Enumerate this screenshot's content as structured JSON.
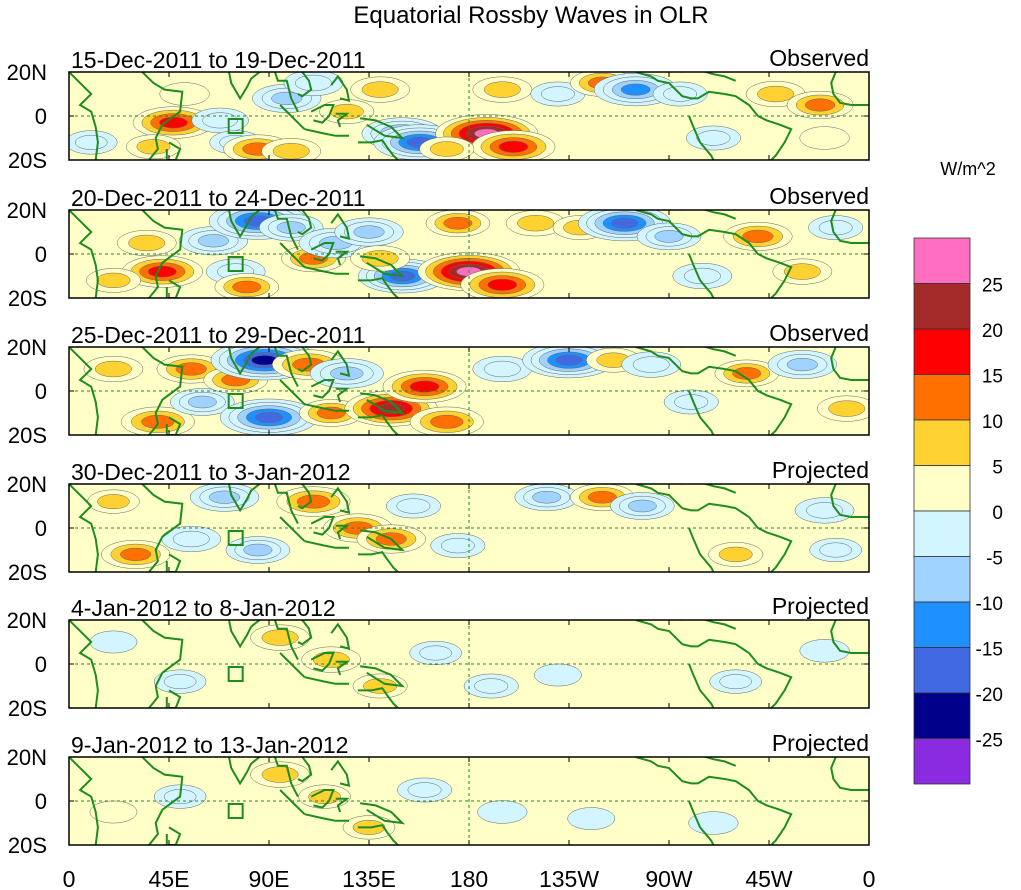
{
  "chart_data": {
    "type": "heatmap",
    "title": "Equatorial Rossby Waves in OLR",
    "units": "W/m^2",
    "lat_ticks": [
      "20N",
      "0",
      "20S"
    ],
    "lon_ticks": [
      "0",
      "45E",
      "90E",
      "135E",
      "180",
      "135W",
      "90W",
      "45W",
      "0"
    ],
    "lon_range": [
      0,
      360
    ],
    "lat_range": [
      -20,
      20
    ],
    "colorbar": {
      "levels": [
        "25",
        "20",
        "15",
        "10",
        "5",
        "0",
        "-5",
        "-10",
        "-15",
        "-20",
        "-25"
      ],
      "colors": [
        "#ff6ec0",
        "#a52a2a",
        "#ff0000",
        "#ff7000",
        "#ffd232",
        "#ffffc8",
        "#d2f5ff",
        "#a0d2ff",
        "#1e90ff",
        "#4169e1",
        "#00008b",
        "#8a2be2"
      ]
    },
    "panels": [
      {
        "period": "15-Dec-2011 to 19-Dec-2011",
        "kind": "Observed",
        "blobs": [
          {
            "lon": 47,
            "lat": -3,
            "val": 17
          },
          {
            "lon": 38,
            "lat": -14,
            "val": 6
          },
          {
            "lon": 52,
            "lat": 10,
            "val": 4
          },
          {
            "lon": 68,
            "lat": -2,
            "val": -7
          },
          {
            "lon": 75,
            "lat": -12,
            "val": -5
          },
          {
            "lon": 85,
            "lat": -15,
            "val": 12
          },
          {
            "lon": 100,
            "lat": -16,
            "val": 8
          },
          {
            "lon": 98,
            "lat": 8,
            "val": -12
          },
          {
            "lon": 110,
            "lat": 15,
            "val": -8
          },
          {
            "lon": 125,
            "lat": 2,
            "val": 6
          },
          {
            "lon": 140,
            "lat": 12,
            "val": 8
          },
          {
            "lon": 150,
            "lat": -8,
            "val": -17
          },
          {
            "lon": 158,
            "lat": -12,
            "val": -22
          },
          {
            "lon": 188,
            "lat": -8,
            "val": 26
          },
          {
            "lon": 200,
            "lat": -14,
            "val": 18
          },
          {
            "lon": 170,
            "lat": -15,
            "val": 6
          },
          {
            "lon": 195,
            "lat": 12,
            "val": 8
          },
          {
            "lon": 220,
            "lat": 10,
            "val": -6
          },
          {
            "lon": 240,
            "lat": 15,
            "val": 10
          },
          {
            "lon": 255,
            "lat": 12,
            "val": -18
          },
          {
            "lon": 275,
            "lat": 10,
            "val": -6
          },
          {
            "lon": 290,
            "lat": -10,
            "val": -6
          },
          {
            "lon": 318,
            "lat": 10,
            "val": 8
          },
          {
            "lon": 338,
            "lat": 5,
            "val": 11
          },
          {
            "lon": 340,
            "lat": -10,
            "val": 4
          },
          {
            "lon": 10,
            "lat": -12,
            "val": -5
          }
        ]
      },
      {
        "period": "20-Dec-2011 to 24-Dec-2011",
        "kind": "Observed",
        "blobs": [
          {
            "lon": 42,
            "lat": -8,
            "val": 17
          },
          {
            "lon": 35,
            "lat": 5,
            "val": 8
          },
          {
            "lon": 20,
            "lat": -12,
            "val": 6
          },
          {
            "lon": 65,
            "lat": 6,
            "val": -12
          },
          {
            "lon": 75,
            "lat": -8,
            "val": -8
          },
          {
            "lon": 85,
            "lat": 15,
            "val": -24
          },
          {
            "lon": 100,
            "lat": 12,
            "val": -10
          },
          {
            "lon": 80,
            "lat": -15,
            "val": 10
          },
          {
            "lon": 110,
            "lat": -2,
            "val": 10
          },
          {
            "lon": 120,
            "lat": 5,
            "val": -14
          },
          {
            "lon": 135,
            "lat": 10,
            "val": -12
          },
          {
            "lon": 150,
            "lat": -10,
            "val": -20
          },
          {
            "lon": 140,
            "lat": -2,
            "val": 8
          },
          {
            "lon": 180,
            "lat": -8,
            "val": 26
          },
          {
            "lon": 195,
            "lat": -14,
            "val": 18
          },
          {
            "lon": 175,
            "lat": 14,
            "val": 10
          },
          {
            "lon": 210,
            "lat": 14,
            "val": 8
          },
          {
            "lon": 230,
            "lat": 12,
            "val": 6
          },
          {
            "lon": 250,
            "lat": 14,
            "val": -22
          },
          {
            "lon": 270,
            "lat": 8,
            "val": -10
          },
          {
            "lon": 285,
            "lat": -10,
            "val": -8
          },
          {
            "lon": 310,
            "lat": 8,
            "val": 12
          },
          {
            "lon": 330,
            "lat": -8,
            "val": 8
          },
          {
            "lon": 345,
            "lat": 12,
            "val": -6
          }
        ]
      },
      {
        "period": "25-Dec-2011 to 29-Dec-2011",
        "kind": "Observed",
        "blobs": [
          {
            "lon": 20,
            "lat": 10,
            "val": 8
          },
          {
            "lon": 40,
            "lat": -14,
            "val": 14
          },
          {
            "lon": 55,
            "lat": 10,
            "val": 12
          },
          {
            "lon": 60,
            "lat": -5,
            "val": -10
          },
          {
            "lon": 75,
            "lat": 5,
            "val": 10
          },
          {
            "lon": 88,
            "lat": 14,
            "val": -28
          },
          {
            "lon": 90,
            "lat": -12,
            "val": -24
          },
          {
            "lon": 108,
            "lat": 12,
            "val": 14
          },
          {
            "lon": 125,
            "lat": 8,
            "val": -14
          },
          {
            "lon": 118,
            "lat": -10,
            "val": 10
          },
          {
            "lon": 145,
            "lat": -8,
            "val": 22
          },
          {
            "lon": 160,
            "lat": 2,
            "val": 18
          },
          {
            "lon": 170,
            "lat": -14,
            "val": 14
          },
          {
            "lon": 195,
            "lat": 10,
            "val": -8
          },
          {
            "lon": 225,
            "lat": 14,
            "val": -22
          },
          {
            "lon": 245,
            "lat": 14,
            "val": 6
          },
          {
            "lon": 262,
            "lat": 12,
            "val": -8
          },
          {
            "lon": 280,
            "lat": -5,
            "val": -6
          },
          {
            "lon": 305,
            "lat": 8,
            "val": 10
          },
          {
            "lon": 330,
            "lat": 12,
            "val": -12
          },
          {
            "lon": 350,
            "lat": -8,
            "val": 8
          }
        ]
      },
      {
        "period": "30-Dec-2011 to 3-Jan-2012",
        "kind": "Projected",
        "blobs": [
          {
            "lon": 30,
            "lat": -12,
            "val": 12
          },
          {
            "lon": 20,
            "lat": 12,
            "val": 5
          },
          {
            "lon": 55,
            "lat": -5,
            "val": -8
          },
          {
            "lon": 70,
            "lat": 14,
            "val": -12
          },
          {
            "lon": 85,
            "lat": -10,
            "val": -10
          },
          {
            "lon": 110,
            "lat": 12,
            "val": 14
          },
          {
            "lon": 130,
            "lat": 0,
            "val": 12
          },
          {
            "lon": 145,
            "lat": -5,
            "val": 12
          },
          {
            "lon": 155,
            "lat": 10,
            "val": -6
          },
          {
            "lon": 175,
            "lat": -8,
            "val": -6
          },
          {
            "lon": 215,
            "lat": 14,
            "val": -10
          },
          {
            "lon": 240,
            "lat": 14,
            "val": 10
          },
          {
            "lon": 258,
            "lat": 10,
            "val": -10
          },
          {
            "lon": 300,
            "lat": -12,
            "val": 6
          },
          {
            "lon": 340,
            "lat": 8,
            "val": -8
          },
          {
            "lon": 345,
            "lat": -10,
            "val": -5
          }
        ]
      },
      {
        "period": "4-Jan-2012 to 8-Jan-2012",
        "kind": "Projected",
        "blobs": [
          {
            "lon": 95,
            "lat": 12,
            "val": 8
          },
          {
            "lon": 118,
            "lat": 2,
            "val": 8
          },
          {
            "lon": 140,
            "lat": -10,
            "val": 6
          },
          {
            "lon": 50,
            "lat": -8,
            "val": -5
          },
          {
            "lon": 165,
            "lat": 5,
            "val": -5
          },
          {
            "lon": 190,
            "lat": -10,
            "val": -6
          },
          {
            "lon": 220,
            "lat": -5,
            "val": -3
          },
          {
            "lon": 300,
            "lat": -8,
            "val": -5
          },
          {
            "lon": 340,
            "lat": 6,
            "val": -4
          },
          {
            "lon": 20,
            "lat": 10,
            "val": -3
          }
        ]
      },
      {
        "period": "9-Jan-2012 to 13-Jan-2012",
        "kind": "Projected",
        "blobs": [
          {
            "lon": 95,
            "lat": 12,
            "val": 8
          },
          {
            "lon": 115,
            "lat": 2,
            "val": 5
          },
          {
            "lon": 135,
            "lat": -12,
            "val": 5
          },
          {
            "lon": 50,
            "lat": 2,
            "val": -5
          },
          {
            "lon": 160,
            "lat": 5,
            "val": -6
          },
          {
            "lon": 195,
            "lat": -5,
            "val": -4
          },
          {
            "lon": 235,
            "lat": -8,
            "val": -3
          },
          {
            "lon": 290,
            "lat": -10,
            "val": -4
          },
          {
            "lon": 20,
            "lat": -5,
            "val": 3
          }
        ]
      }
    ]
  }
}
